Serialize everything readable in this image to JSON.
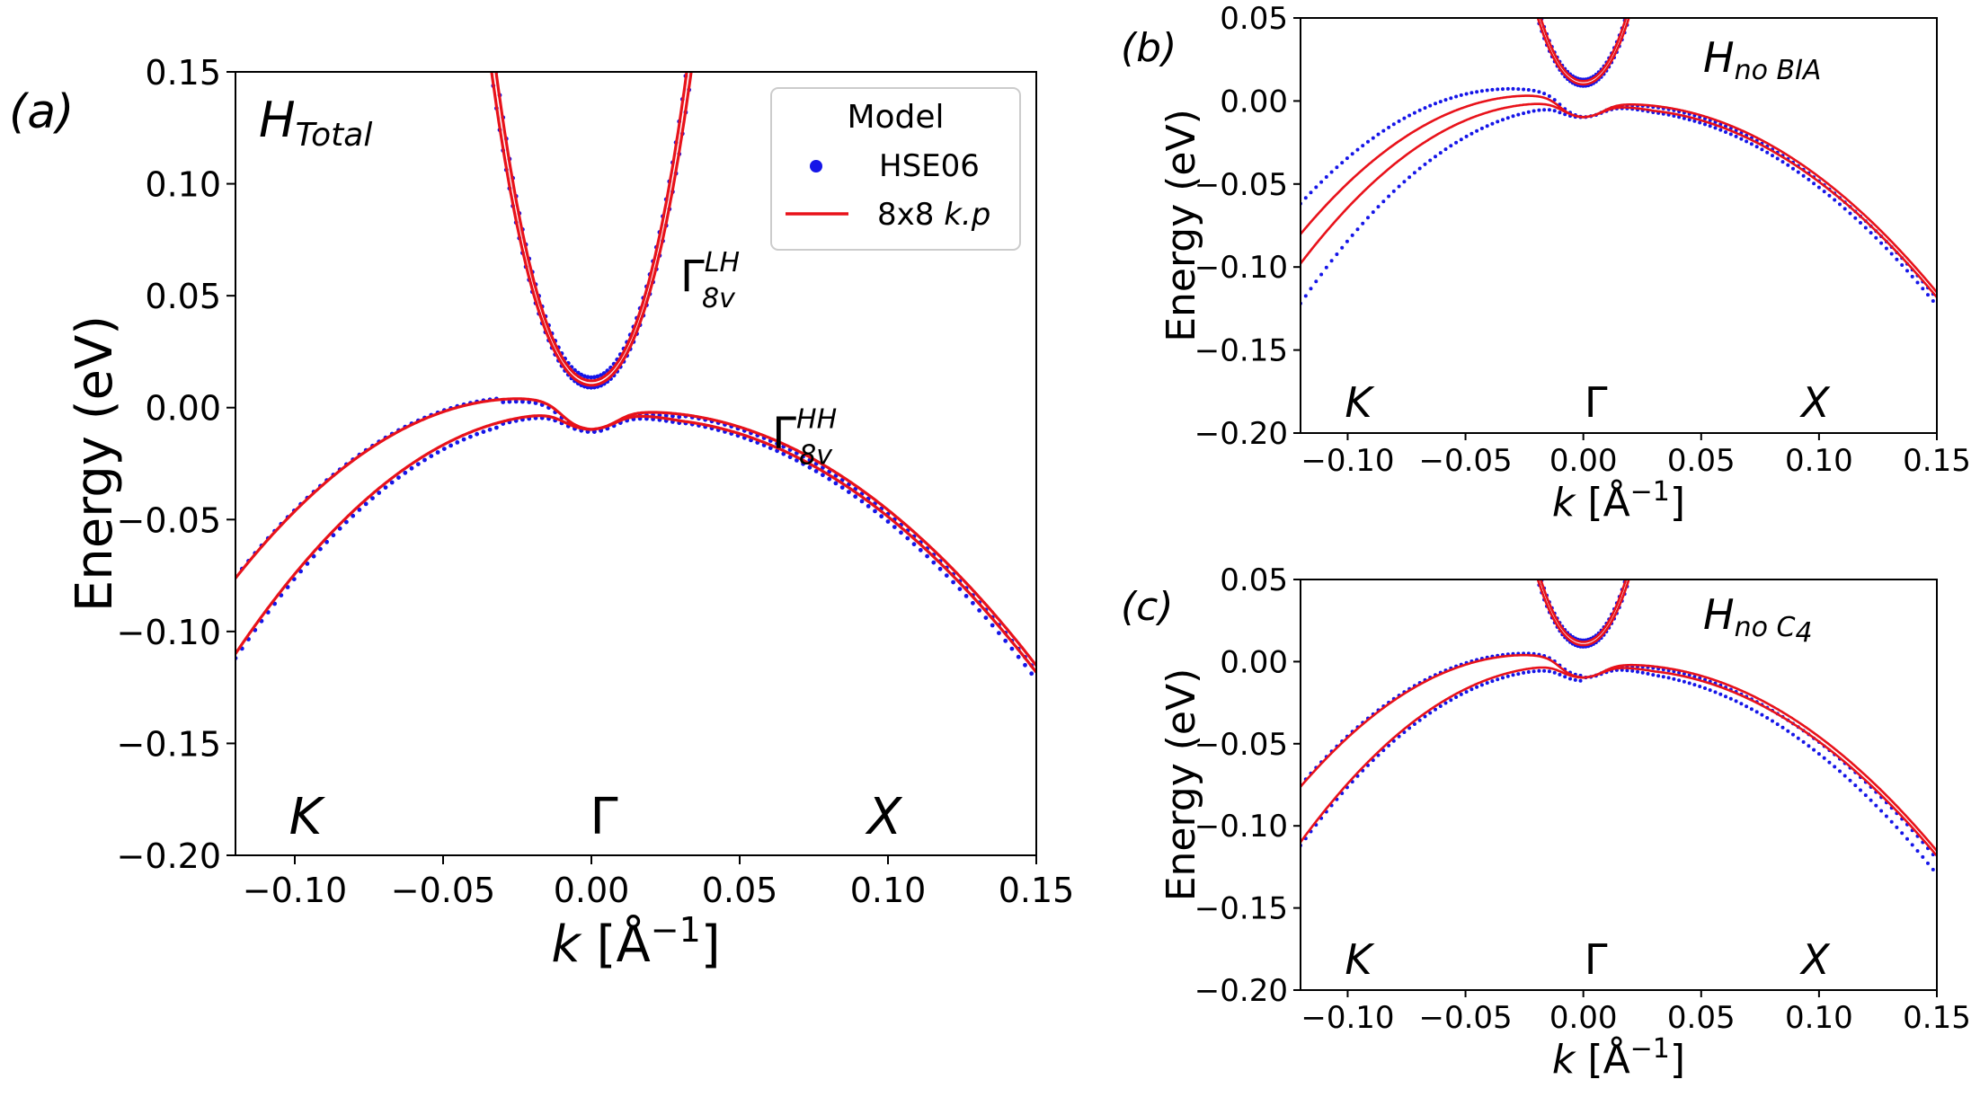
{
  "chart_data": [
    {
      "type": "line",
      "panel": "a",
      "panel_tag": "(a)",
      "hamiltonian": {
        "main": "H",
        "sub": "Total"
      },
      "xlabel": {
        "k": "k",
        "open": " [",
        "unit": "Å",
        "sup": "−1",
        "close": "]"
      },
      "ylabel": "Energy (eV)",
      "xlim": [
        -0.12,
        0.15
      ],
      "ylim": [
        -0.2,
        0.15
      ],
      "xticks": [
        -0.1,
        -0.05,
        0.0,
        0.05,
        0.1,
        0.15
      ],
      "xtick_labels": [
        "−0.10",
        "−0.05",
        "0.00",
        "0.05",
        "0.10",
        "0.15"
      ],
      "yticks": [
        -0.2,
        -0.15,
        -0.1,
        -0.05,
        0.0,
        0.05,
        0.1,
        0.15
      ],
      "ytick_labels": [
        "−0.20",
        "−0.15",
        "−0.10",
        "−0.05",
        "0.00",
        "0.05",
        "0.10",
        "0.15"
      ],
      "kpoints": [
        {
          "label": "K",
          "x": -0.1
        },
        {
          "label": "Γ",
          "x": 0.0
        },
        {
          "label": "X",
          "x": 0.1
        }
      ],
      "annotations": [
        {
          "main": "Γ",
          "sup": "LH",
          "sub": "8v",
          "x": 0.03,
          "y": 0.052
        },
        {
          "main": "Γ",
          "sup": "HH",
          "sub": "8v",
          "x": 0.061,
          "y": -0.018
        }
      ],
      "legend": {
        "title": "Model",
        "entries": [
          {
            "label": "HSE06",
            "style": "dots"
          },
          {
            "label": "8x8 k.p",
            "style": "line"
          }
        ],
        "loc": "upper right"
      },
      "variant": "total"
    },
    {
      "type": "line",
      "panel": "b",
      "panel_tag": "(b)",
      "hamiltonian": {
        "main": "H",
        "sub": "no BIA"
      },
      "xlabel": {
        "k": "k",
        "open": " [",
        "unit": "Å",
        "sup": "−1",
        "close": "]"
      },
      "ylabel": "Energy (eV)",
      "xlim": [
        -0.12,
        0.15
      ],
      "ylim": [
        -0.2,
        0.05
      ],
      "xticks": [
        -0.1,
        -0.05,
        0.0,
        0.05,
        0.1,
        0.15
      ],
      "xtick_labels": [
        "−0.10",
        "−0.05",
        "0.00",
        "0.05",
        "0.10",
        "0.15"
      ],
      "yticks": [
        -0.2,
        -0.15,
        -0.1,
        -0.05,
        0.0,
        0.05
      ],
      "ytick_labels": [
        "−0.20",
        "−0.15",
        "−0.10",
        "−0.05",
        "0.00",
        "0.05"
      ],
      "kpoints": [
        {
          "label": "K",
          "x": -0.1
        },
        {
          "label": "Γ",
          "x": 0.0
        },
        {
          "label": "X",
          "x": 0.1
        }
      ],
      "variant": "noBIA"
    },
    {
      "type": "line",
      "panel": "c",
      "panel_tag": "(c)",
      "hamiltonian": {
        "main": "H",
        "sub": "no C",
        "sub2": "4"
      },
      "xlabel": {
        "k": "k",
        "open": " [",
        "unit": "Å",
        "sup": "−1",
        "close": "]"
      },
      "ylabel": "Energy (eV)",
      "xlim": [
        -0.12,
        0.15
      ],
      "ylim": [
        -0.2,
        0.05
      ],
      "xticks": [
        -0.1,
        -0.05,
        0.0,
        0.05,
        0.1,
        0.15
      ],
      "xtick_labels": [
        "−0.10",
        "−0.05",
        "0.00",
        "0.05",
        "0.10",
        "0.15"
      ],
      "yticks": [
        -0.2,
        -0.15,
        -0.1,
        -0.05,
        0.0,
        0.05
      ],
      "ytick_labels": [
        "−0.20",
        "−0.15",
        "−0.10",
        "−0.05",
        "0.00",
        "0.05"
      ],
      "kpoints": [
        {
          "label": "K",
          "x": -0.1
        },
        {
          "label": "Γ",
          "x": 0.0
        },
        {
          "label": "X",
          "x": 0.1
        }
      ],
      "variant": "noC4"
    }
  ],
  "colors": {
    "hse06": "#1515e8",
    "kp": "#e8121a",
    "axis": "#000000"
  }
}
